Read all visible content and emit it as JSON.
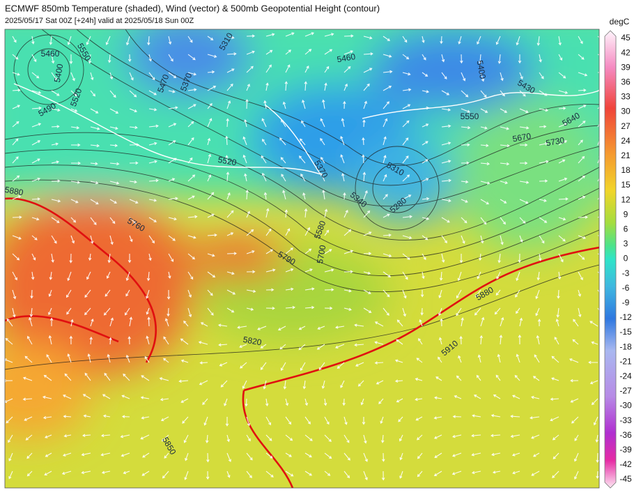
{
  "header": {
    "title": "ECMWF 850mb Temperature (shaded), Wind (vector) & 500mb Geopotential Height (contour)",
    "subtitle": "2025/05/17 Sat 00Z [+24h] valid at 2025/05/18 Sun 00Z"
  },
  "colorbar": {
    "unit": "degC",
    "labels": [
      45,
      42,
      39,
      36,
      33,
      30,
      27,
      24,
      21,
      18,
      15,
      12,
      9,
      6,
      3,
      0,
      -3,
      -6,
      -9,
      -12,
      -15,
      -18,
      -21,
      -24,
      -27,
      -30,
      -33,
      -36,
      -39,
      -42,
      -45
    ]
  },
  "map": {
    "contour_labels": [
      "5460",
      "5400",
      "5490",
      "5520",
      "5550",
      "5470",
      "5370",
      "5310",
      "5460",
      "5400",
      "5430",
      "5550",
      "5640",
      "5670",
      "5730",
      "5520",
      "5370",
      "5310",
      "5340",
      "5280",
      "5580",
      "5700",
      "5790",
      "5760",
      "5880",
      "5880",
      "5820",
      "5910",
      "5850"
    ]
  }
}
